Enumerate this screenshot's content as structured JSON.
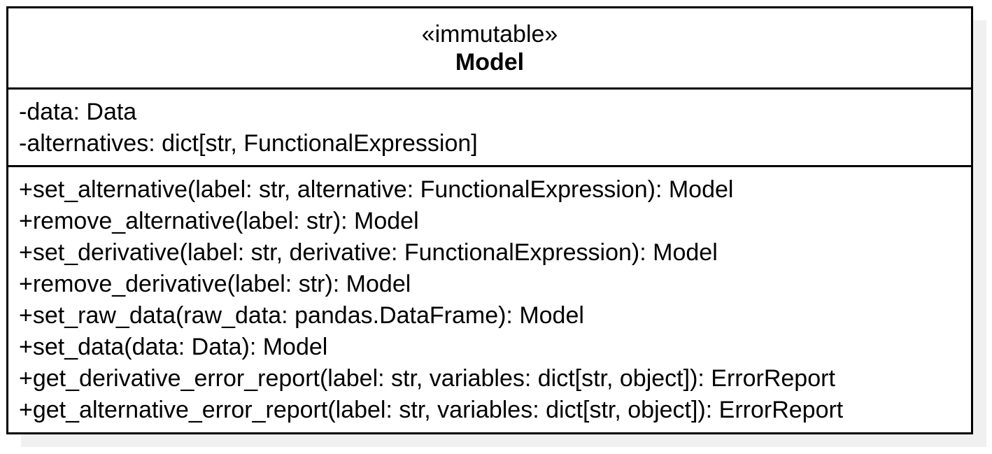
{
  "class": {
    "stereotype": "«immutable»",
    "name": "Model",
    "attributes": [
      "-data: Data",
      "-alternatives: dict[str, FunctionalExpression]"
    ],
    "operations": [
      "+set_alternative(label: str, alternative: FunctionalExpression): Model",
      "+remove_alternative(label: str): Model",
      "+set_derivative(label: str, derivative: FunctionalExpression): Model",
      "+remove_derivative(label: str): Model",
      "+set_raw_data(raw_data: pandas.DataFrame): Model",
      "+set_data(data: Data): Model",
      "+get_derivative_error_report(label: str, variables: dict[str, object]): ErrorReport",
      "+get_alternative_error_report(label: str, variables: dict[str, object]): ErrorReport"
    ]
  }
}
